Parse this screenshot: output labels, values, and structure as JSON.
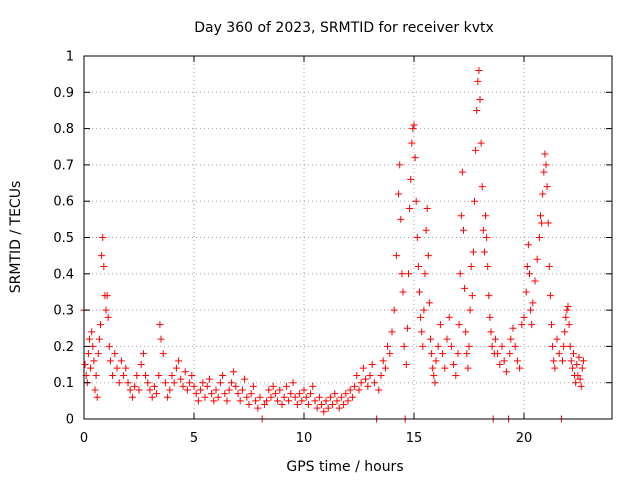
{
  "chart_data": {
    "type": "scatter",
    "title": "Day 360 of 2023, SRMTID for receiver kvtx",
    "xlabel": "GPS time / hours",
    "ylabel": "SRMTID / TECUs",
    "xlim": [
      0,
      24
    ],
    "ylim": [
      0,
      1
    ],
    "xticks": [
      0,
      5,
      10,
      15,
      20
    ],
    "xtick_labels": [
      "0",
      "5",
      "10",
      "15",
      "20"
    ],
    "yticks": [
      0,
      0.1,
      0.2,
      0.3,
      0.4,
      0.5,
      0.6,
      0.7,
      0.8,
      0.9,
      1
    ],
    "ytick_labels": [
      "0",
      "0.1",
      "0.2",
      "0.3",
      "0.4",
      "0.5",
      "0.6",
      "0.7",
      "0.8",
      "0.9",
      "1"
    ],
    "grid": true,
    "marker": "+",
    "color": "#ff0000",
    "series": [
      {
        "name": "SRMTID",
        "points": [
          [
            0.0,
            0.3
          ],
          [
            0.05,
            0.15
          ],
          [
            0.1,
            0.12
          ],
          [
            0.15,
            0.1
          ],
          [
            0.2,
            0.18
          ],
          [
            0.25,
            0.22
          ],
          [
            0.3,
            0.14
          ],
          [
            0.35,
            0.24
          ],
          [
            0.4,
            0.2
          ],
          [
            0.45,
            0.16
          ],
          [
            0.5,
            0.08
          ],
          [
            0.55,
            0.12
          ],
          [
            0.6,
            0.06
          ],
          [
            0.65,
            0.18
          ],
          [
            0.7,
            0.22
          ],
          [
            0.75,
            0.26
          ],
          [
            0.8,
            0.45
          ],
          [
            0.85,
            0.5
          ],
          [
            0.9,
            0.42
          ],
          [
            0.95,
            0.34
          ],
          [
            1.0,
            0.3
          ],
          [
            1.05,
            0.34
          ],
          [
            1.1,
            0.28
          ],
          [
            1.15,
            0.2
          ],
          [
            1.2,
            0.16
          ],
          [
            1.3,
            0.12
          ],
          [
            1.4,
            0.18
          ],
          [
            1.5,
            0.14
          ],
          [
            1.6,
            0.1
          ],
          [
            1.7,
            0.16
          ],
          [
            1.8,
            0.12
          ],
          [
            1.9,
            0.14
          ],
          [
            2.0,
            0.1
          ],
          [
            2.1,
            0.08
          ],
          [
            2.2,
            0.06
          ],
          [
            2.3,
            0.09
          ],
          [
            2.4,
            0.12
          ],
          [
            2.5,
            0.08
          ],
          [
            2.6,
            0.15
          ],
          [
            2.7,
            0.18
          ],
          [
            2.8,
            0.12
          ],
          [
            2.9,
            0.1
          ],
          [
            3.0,
            0.08
          ],
          [
            3.1,
            0.06
          ],
          [
            3.2,
            0.09
          ],
          [
            3.3,
            0.07
          ],
          [
            3.4,
            0.12
          ],
          [
            3.45,
            0.26
          ],
          [
            3.5,
            0.22
          ],
          [
            3.6,
            0.18
          ],
          [
            3.7,
            0.1
          ],
          [
            3.8,
            0.06
          ],
          [
            3.9,
            0.08
          ],
          [
            4.0,
            0.12
          ],
          [
            4.1,
            0.1
          ],
          [
            4.2,
            0.14
          ],
          [
            4.3,
            0.16
          ],
          [
            4.4,
            0.11
          ],
          [
            4.5,
            0.09
          ],
          [
            4.6,
            0.13
          ],
          [
            4.7,
            0.08
          ],
          [
            4.8,
            0.1
          ],
          [
            4.9,
            0.12
          ],
          [
            5.0,
            0.09
          ],
          [
            5.1,
            0.07
          ],
          [
            5.2,
            0.05
          ],
          [
            5.3,
            0.08
          ],
          [
            5.4,
            0.1
          ],
          [
            5.5,
            0.06
          ],
          [
            5.6,
            0.09
          ],
          [
            5.7,
            0.11
          ],
          [
            5.8,
            0.07
          ],
          [
            5.9,
            0.05
          ],
          [
            6.0,
            0.08
          ],
          [
            6.1,
            0.06
          ],
          [
            6.2,
            0.1
          ],
          [
            6.3,
            0.12
          ],
          [
            6.4,
            0.07
          ],
          [
            6.5,
            0.05
          ],
          [
            6.6,
            0.08
          ],
          [
            6.7,
            0.1
          ],
          [
            6.8,
            0.13
          ],
          [
            6.9,
            0.09
          ],
          [
            7.0,
            0.07
          ],
          [
            7.1,
            0.05
          ],
          [
            7.2,
            0.08
          ],
          [
            7.3,
            0.11
          ],
          [
            7.4,
            0.06
          ],
          [
            7.5,
            0.04
          ],
          [
            7.6,
            0.07
          ],
          [
            7.7,
            0.09
          ],
          [
            7.8,
            0.05
          ],
          [
            7.9,
            0.03
          ],
          [
            8.0,
            0.06
          ],
          [
            8.1,
            0.0
          ],
          [
            8.2,
            0.04
          ],
          [
            8.3,
            0.05
          ],
          [
            8.4,
            0.08
          ],
          [
            8.5,
            0.06
          ],
          [
            8.6,
            0.09
          ],
          [
            8.7,
            0.07
          ],
          [
            8.8,
            0.05
          ],
          [
            8.9,
            0.08
          ],
          [
            9.0,
            0.04
          ],
          [
            9.1,
            0.06
          ],
          [
            9.2,
            0.09
          ],
          [
            9.3,
            0.05
          ],
          [
            9.4,
            0.07
          ],
          [
            9.5,
            0.1
          ],
          [
            9.6,
            0.06
          ],
          [
            9.7,
            0.04
          ],
          [
            9.8,
            0.07
          ],
          [
            9.9,
            0.05
          ],
          [
            10.0,
            0.08
          ],
          [
            10.1,
            0.06
          ],
          [
            10.2,
            0.04
          ],
          [
            10.3,
            0.07
          ],
          [
            10.4,
            0.09
          ],
          [
            10.5,
            0.05
          ],
          [
            10.6,
            0.03
          ],
          [
            10.7,
            0.06
          ],
          [
            10.8,
            0.04
          ],
          [
            10.9,
            0.02
          ],
          [
            11.0,
            0.05
          ],
          [
            11.1,
            0.03
          ],
          [
            11.2,
            0.06
          ],
          [
            11.3,
            0.04
          ],
          [
            11.4,
            0.07
          ],
          [
            11.5,
            0.05
          ],
          [
            11.6,
            0.03
          ],
          [
            11.7,
            0.06
          ],
          [
            11.8,
            0.04
          ],
          [
            11.9,
            0.07
          ],
          [
            12.0,
            0.05
          ],
          [
            12.1,
            0.08
          ],
          [
            12.2,
            0.06
          ],
          [
            12.3,
            0.09
          ],
          [
            12.4,
            0.12
          ],
          [
            12.5,
            0.08
          ],
          [
            12.6,
            0.1
          ],
          [
            12.7,
            0.14
          ],
          [
            12.8,
            0.11
          ],
          [
            12.9,
            0.09
          ],
          [
            13.0,
            0.12
          ],
          [
            13.1,
            0.15
          ],
          [
            13.2,
            0.1
          ],
          [
            13.3,
            0.0
          ],
          [
            13.4,
            0.08
          ],
          [
            13.5,
            0.12
          ],
          [
            13.6,
            0.16
          ],
          [
            13.7,
            0.14
          ],
          [
            13.8,
            0.2
          ],
          [
            13.9,
            0.18
          ],
          [
            14.0,
            0.24
          ],
          [
            14.1,
            0.3
          ],
          [
            14.2,
            0.45
          ],
          [
            14.3,
            0.62
          ],
          [
            14.35,
            0.7
          ],
          [
            14.4,
            0.55
          ],
          [
            14.45,
            0.4
          ],
          [
            14.5,
            0.35
          ],
          [
            14.55,
            0.2
          ],
          [
            14.6,
            0.0
          ],
          [
            14.65,
            0.15
          ],
          [
            14.7,
            0.25
          ],
          [
            14.75,
            0.4
          ],
          [
            14.8,
            0.58
          ],
          [
            14.85,
            0.66
          ],
          [
            14.9,
            0.76
          ],
          [
            14.95,
            0.8
          ],
          [
            15.0,
            0.81
          ],
          [
            15.05,
            0.72
          ],
          [
            15.1,
            0.6
          ],
          [
            15.15,
            0.5
          ],
          [
            15.2,
            0.42
          ],
          [
            15.25,
            0.35
          ],
          [
            15.3,
            0.28
          ],
          [
            15.35,
            0.24
          ],
          [
            15.4,
            0.2
          ],
          [
            15.45,
            0.3
          ],
          [
            15.5,
            0.4
          ],
          [
            15.55,
            0.52
          ],
          [
            15.6,
            0.58
          ],
          [
            15.65,
            0.45
          ],
          [
            15.7,
            0.32
          ],
          [
            15.75,
            0.22
          ],
          [
            15.8,
            0.18
          ],
          [
            15.85,
            0.14
          ],
          [
            15.9,
            0.12
          ],
          [
            15.95,
            0.1
          ],
          [
            16.0,
            0.16
          ],
          [
            16.1,
            0.2
          ],
          [
            16.2,
            0.26
          ],
          [
            16.3,
            0.18
          ],
          [
            16.4,
            0.14
          ],
          [
            16.5,
            0.22
          ],
          [
            16.6,
            0.28
          ],
          [
            16.7,
            0.2
          ],
          [
            16.8,
            0.15
          ],
          [
            16.9,
            0.12
          ],
          [
            17.0,
            0.18
          ],
          [
            17.05,
            0.26
          ],
          [
            17.1,
            0.4
          ],
          [
            17.15,
            0.56
          ],
          [
            17.2,
            0.68
          ],
          [
            17.25,
            0.52
          ],
          [
            17.3,
            0.36
          ],
          [
            17.35,
            0.24
          ],
          [
            17.4,
            0.18
          ],
          [
            17.45,
            0.14
          ],
          [
            17.5,
            0.2
          ],
          [
            17.55,
            0.3
          ],
          [
            17.6,
            0.42
          ],
          [
            17.65,
            0.34
          ],
          [
            17.7,
            0.46
          ],
          [
            17.75,
            0.6
          ],
          [
            17.8,
            0.74
          ],
          [
            17.85,
            0.85
          ],
          [
            17.9,
            0.93
          ],
          [
            17.95,
            0.96
          ],
          [
            18.0,
            0.88
          ],
          [
            18.05,
            0.76
          ],
          [
            18.1,
            0.64
          ],
          [
            18.15,
            0.52
          ],
          [
            18.2,
            0.46
          ],
          [
            18.25,
            0.56
          ],
          [
            18.3,
            0.5
          ],
          [
            18.35,
            0.42
          ],
          [
            18.4,
            0.34
          ],
          [
            18.45,
            0.28
          ],
          [
            18.5,
            0.24
          ],
          [
            18.55,
            0.2
          ],
          [
            18.6,
            0.0
          ],
          [
            18.65,
            0.18
          ],
          [
            18.7,
            0.22
          ],
          [
            18.8,
            0.18
          ],
          [
            18.9,
            0.15
          ],
          [
            19.0,
            0.2
          ],
          [
            19.1,
            0.16
          ],
          [
            19.2,
            0.13
          ],
          [
            19.3,
            0.0
          ],
          [
            19.35,
            0.18
          ],
          [
            19.4,
            0.22
          ],
          [
            19.5,
            0.25
          ],
          [
            19.6,
            0.2
          ],
          [
            19.7,
            0.16
          ],
          [
            19.8,
            0.14
          ],
          [
            19.9,
            0.26
          ],
          [
            20.0,
            0.28
          ],
          [
            20.1,
            0.35
          ],
          [
            20.15,
            0.42
          ],
          [
            20.2,
            0.48
          ],
          [
            20.25,
            0.4
          ],
          [
            20.3,
            0.3
          ],
          [
            20.35,
            0.26
          ],
          [
            20.4,
            0.32
          ],
          [
            20.5,
            0.38
          ],
          [
            20.6,
            0.44
          ],
          [
            20.7,
            0.5
          ],
          [
            20.75,
            0.56
          ],
          [
            20.8,
            0.54
          ],
          [
            20.85,
            0.62
          ],
          [
            20.9,
            0.68
          ],
          [
            20.95,
            0.73
          ],
          [
            21.0,
            0.7
          ],
          [
            21.05,
            0.64
          ],
          [
            21.1,
            0.54
          ],
          [
            21.15,
            0.42
          ],
          [
            21.2,
            0.34
          ],
          [
            21.25,
            0.26
          ],
          [
            21.3,
            0.2
          ],
          [
            21.35,
            0.16
          ],
          [
            21.4,
            0.14
          ],
          [
            21.5,
            0.22
          ],
          [
            21.6,
            0.18
          ],
          [
            21.7,
            0.0
          ],
          [
            21.75,
            0.16
          ],
          [
            21.8,
            0.2
          ],
          [
            21.85,
            0.24
          ],
          [
            21.9,
            0.28
          ],
          [
            21.95,
            0.3
          ],
          [
            22.0,
            0.31
          ],
          [
            22.05,
            0.26
          ],
          [
            22.1,
            0.2
          ],
          [
            22.15,
            0.16
          ],
          [
            22.2,
            0.14
          ],
          [
            22.25,
            0.18
          ],
          [
            22.3,
            0.12
          ],
          [
            22.35,
            0.1
          ],
          [
            22.4,
            0.15
          ],
          [
            22.45,
            0.12
          ],
          [
            22.5,
            0.17
          ],
          [
            22.55,
            0.11
          ],
          [
            22.6,
            0.09
          ],
          [
            22.65,
            0.14
          ],
          [
            22.7,
            0.16
          ]
        ]
      }
    ]
  }
}
